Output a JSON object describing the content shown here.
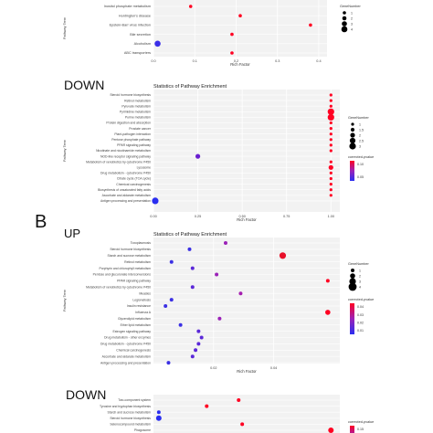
{
  "labels": {
    "down1": "DOWN",
    "panel_b": "B",
    "up": "UP",
    "down2": "DOWN"
  },
  "chart_data": [
    {
      "id": "c0",
      "type": "scatter",
      "title": "",
      "xlabel": "Rich Factor",
      "ylabel": "Pathway Term",
      "xlim": [
        0.0,
        0.42
      ],
      "xticks": [
        0.0,
        0.1,
        0.2,
        0.3,
        0.4
      ],
      "xtick_labels": [
        "0.0",
        "0.1",
        "0.2",
        "0.3",
        "0.4"
      ],
      "categories": [
        "Inositol phosphate metabolism",
        "Huntington's disease",
        "Epstein-Barr virus infection",
        "Bile secretion",
        "Alcoholism",
        "ABC transporters"
      ],
      "points": [
        {
          "x": 0.09,
          "gene": 1,
          "color": "#ff0022"
        },
        {
          "x": 0.21,
          "gene": 1,
          "color": "#ff0022"
        },
        {
          "x": 0.38,
          "gene": 1,
          "color": "#ff0022"
        },
        {
          "x": 0.19,
          "gene": 1,
          "color": "#ff0022"
        },
        {
          "x": 0.01,
          "gene": 4,
          "color": "#3b2fe8"
        },
        {
          "x": 0.19,
          "gene": 1,
          "color": "#ff0022"
        }
      ],
      "size_legend": {
        "title": "GeneNumber",
        "values": [
          1,
          2,
          3,
          4
        ]
      },
      "color_legend": null
    },
    {
      "id": "c1",
      "type": "scatter",
      "title": "Statistics of Pathway Enrichment",
      "xlabel": "Rich Factor",
      "ylabel": "Pathway Term",
      "xlim": [
        0.0,
        1.05
      ],
      "xticks": [
        0.0,
        0.25,
        0.5,
        0.75,
        1.0
      ],
      "xtick_labels": [
        "0.00",
        "0.25",
        "0.50",
        "0.75",
        "1.00"
      ],
      "categories": [
        "Steroid hormone biosynthesis",
        "Retinol metabolism",
        "Pyruvate metabolism",
        "Pyrimidine metabolism",
        "Purine metabolism",
        "Protein digestion and absorption",
        "Prostate cancer",
        "Plant-pathogen interaction",
        "Pentose phosphate pathway",
        "PPAR signaling pathway",
        "Nicotinate and nicotinamide metabolism",
        "NOD-like receptor signaling pathway",
        "Metabolism of xenobiotics by cytochrome P450",
        "Lysosome",
        "Drug metabolism - cytochrome P450",
        "Citrate cycle (TCA cycle)",
        "Chemical carcinogenesis",
        "Biosynthesis of unsaturated fatty acids",
        "Ascorbate and aldarate metabolism",
        "Antigen processing and presentation"
      ],
      "points": [
        {
          "x": 1.0,
          "gene": 1,
          "color": "#ff0022"
        },
        {
          "x": 1.0,
          "gene": 1,
          "color": "#ff0022"
        },
        {
          "x": 1.0,
          "gene": 1,
          "color": "#ff0022"
        },
        {
          "x": 1.0,
          "gene": 3,
          "color": "#ff0022"
        },
        {
          "x": 1.0,
          "gene": 3,
          "color": "#ff0022"
        },
        {
          "x": 1.0,
          "gene": 1,
          "color": "#ff0022"
        },
        {
          "x": 1.0,
          "gene": 1,
          "color": "#ff0022"
        },
        {
          "x": 1.0,
          "gene": 1,
          "color": "#ff0022"
        },
        {
          "x": 1.0,
          "gene": 1,
          "color": "#ff0022"
        },
        {
          "x": 1.0,
          "gene": 1,
          "color": "#ff0022"
        },
        {
          "x": 1.0,
          "gene": 1,
          "color": "#ff0022"
        },
        {
          "x": 0.25,
          "gene": 2,
          "color": "#6a1fd0"
        },
        {
          "x": 1.0,
          "gene": 1,
          "color": "#ff0022"
        },
        {
          "x": 1.0,
          "gene": 2,
          "color": "#ff0022"
        },
        {
          "x": 1.0,
          "gene": 1,
          "color": "#ff0022"
        },
        {
          "x": 1.0,
          "gene": 1,
          "color": "#ff0022"
        },
        {
          "x": 1.0,
          "gene": 1,
          "color": "#ff0022"
        },
        {
          "x": 1.0,
          "gene": 1,
          "color": "#ff0022"
        },
        {
          "x": 1.0,
          "gene": 1,
          "color": "#ff0022"
        },
        {
          "x": 0.01,
          "gene": 3,
          "color": "#2a2ef0"
        }
      ],
      "size_legend": {
        "title": "GeneNumber",
        "values": [
          1.0,
          1.5,
          2.0,
          2.5,
          3.0
        ]
      },
      "color_legend": {
        "title": "corrected-pvalue",
        "ticks": [
          "0.10",
          "0.05"
        ],
        "top_color": "#ff0022",
        "bottom_color": "#2a2ef0"
      }
    },
    {
      "id": "c2",
      "type": "scatter",
      "title": "Statistics of Pathway Enrichment",
      "xlabel": "Rich Factor",
      "ylabel": "Pathway Term",
      "xlim": [
        0.0,
        0.062
      ],
      "xticks": [
        0.02,
        0.04
      ],
      "xtick_labels": [
        "0.02",
        "0.04"
      ],
      "categories": [
        "Toxoplasmosis",
        "Steroid hormone biosynthesis",
        "Starch and sucrose metabolism",
        "Retinol metabolism",
        "Porphyrin and chlorophyll metabolism",
        "Pentose and glucuronate interconversions",
        "PPAR signaling pathway",
        "Metabolism of xenobiotics by cytochrome P450",
        "Measles",
        "Legionellosis",
        "Insulin resistance",
        "Influenza A",
        "Glycerolipid metabolism",
        "Ether lipid metabolism",
        "Estrogen signaling pathway",
        "Drug metabolism - other enzymes",
        "Drug metabolism - cytochrome P450",
        "Chemical carcinogenesis",
        "Ascorbate and aldarate metabolism",
        "Antigen processing and presentation"
      ],
      "points": [
        {
          "x": 0.024,
          "gene": 1,
          "color": "#9b22b8"
        },
        {
          "x": 0.012,
          "gene": 1,
          "color": "#3b30e4"
        },
        {
          "x": 0.043,
          "gene": 3,
          "color": "#e8102a"
        },
        {
          "x": 0.006,
          "gene": 1,
          "color": "#3b30e4"
        },
        {
          "x": 0.013,
          "gene": 1,
          "color": "#5b28d8"
        },
        {
          "x": 0.021,
          "gene": 1,
          "color": "#9b22b8"
        },
        {
          "x": 0.058,
          "gene": 1,
          "color": "#ff0022"
        },
        {
          "x": 0.013,
          "gene": 1,
          "color": "#5b28d8"
        },
        {
          "x": 0.029,
          "gene": 1,
          "color": "#a51fb0"
        },
        {
          "x": 0.006,
          "gene": 1,
          "color": "#3b30e4"
        },
        {
          "x": 0.004,
          "gene": 1,
          "color": "#3b30e4"
        },
        {
          "x": 0.058,
          "gene": 2,
          "color": "#ff0022"
        },
        {
          "x": 0.022,
          "gene": 1,
          "color": "#9b22b8"
        },
        {
          "x": 0.009,
          "gene": 1,
          "color": "#3b30e4"
        },
        {
          "x": 0.015,
          "gene": 1,
          "color": "#5b28d8"
        },
        {
          "x": 0.016,
          "gene": 1,
          "color": "#5b28d8"
        },
        {
          "x": 0.015,
          "gene": 1,
          "color": "#5b28d8"
        },
        {
          "x": 0.014,
          "gene": 1,
          "color": "#5b28d8"
        },
        {
          "x": 0.013,
          "gene": 1,
          "color": "#5b28d8"
        },
        {
          "x": 0.005,
          "gene": 1,
          "color": "#3b30e4"
        }
      ],
      "size_legend": {
        "title": "GeneNumber",
        "values": [
          1,
          2,
          3,
          4
        ]
      },
      "color_legend": {
        "title": "corrected-pvalue",
        "ticks": [
          "0.04",
          "0.03",
          "0.02",
          "0.01"
        ],
        "top_color": "#ff0022",
        "bottom_color": "#2a2ef0"
      }
    },
    {
      "id": "c3",
      "type": "scatter",
      "title": "",
      "xlabel": "",
      "ylabel": "",
      "xlim": [
        0.0,
        1.05
      ],
      "xticks": [],
      "xtick_labels": [],
      "categories": [
        "Two-component system",
        "Tyrosine and tryptophan biosynthesis",
        "Starch and sucrose metabolism",
        "Steroid hormone biosynthesis",
        "Selenocompound metabolism",
        "Phagosome"
      ],
      "points": [
        {
          "x": 0.48,
          "gene": 1,
          "color": "#ff0022"
        },
        {
          "x": 0.3,
          "gene": 1,
          "color": "#ff0022"
        },
        {
          "x": 0.03,
          "gene": 1,
          "color": "#2a2ef0"
        },
        {
          "x": 0.03,
          "gene": 2,
          "color": "#2a2ef0"
        },
        {
          "x": 0.5,
          "gene": 1,
          "color": "#ff0022"
        },
        {
          "x": 1.0,
          "gene": 2,
          "color": "#ff0022"
        }
      ],
      "size_legend": null,
      "color_legend": {
        "title": "corrected-pvalue",
        "ticks": [
          "0.15"
        ],
        "top_color": "#ff0022",
        "bottom_color": "#2a2ef0"
      }
    }
  ]
}
